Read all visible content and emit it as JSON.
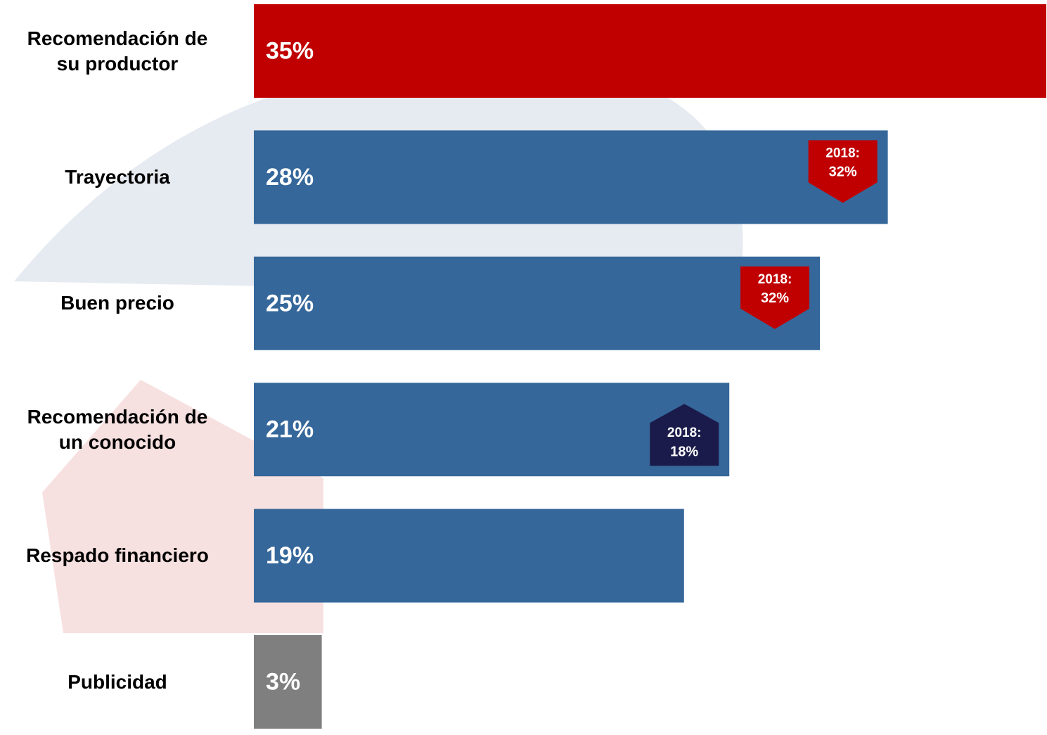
{
  "chart_data": {
    "type": "bar",
    "orientation": "horizontal",
    "categories": [
      "Recomendación de\nsu productor",
      "Trayectoria",
      "Buen precio",
      "Recomendación de\nun conocido",
      "Respado financiero",
      "Publicidad"
    ],
    "values": [
      35,
      28,
      25,
      21,
      19,
      3
    ],
    "value_labels": [
      "35%",
      "28%",
      "25%",
      "21%",
      "19%",
      "3%"
    ],
    "colors": [
      "#c00000",
      "#35679a",
      "#35679a",
      "#35679a",
      "#35679a",
      "#7f7f7f"
    ],
    "xlim": [
      0,
      35
    ],
    "comparison": {
      "label": "2018:",
      "values": [
        null,
        32,
        32,
        18,
        null,
        null
      ],
      "value_labels": [
        null,
        "32%",
        "32%",
        "18%",
        null,
        null
      ],
      "down_color": "#c00000",
      "up_color": "#1b1b4b"
    }
  }
}
